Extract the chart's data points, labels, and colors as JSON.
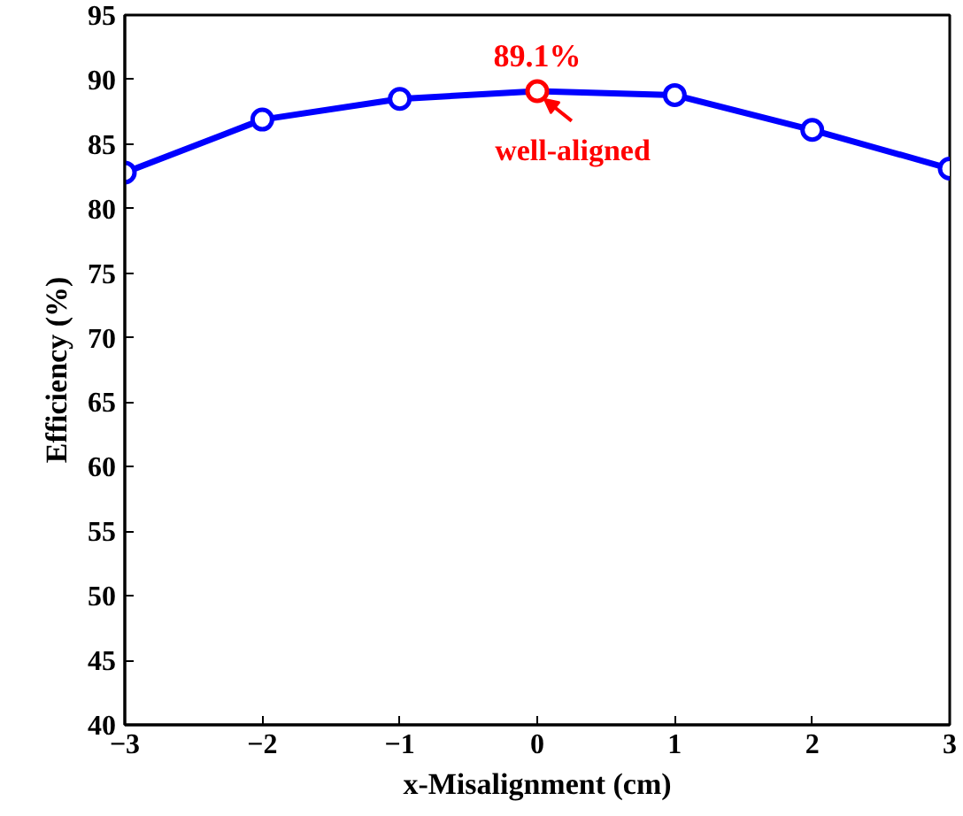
{
  "chart_data": {
    "type": "line",
    "xlabel": "x-Misalignment (cm)",
    "ylabel": "Efficiency (%)",
    "x": [
      -3,
      -2,
      -1,
      0,
      1,
      2,
      3
    ],
    "series": [
      {
        "color": "#0000ff",
        "colors": [
          "#0000ff",
          "#0000ff",
          "#0000ff",
          "#ff0000",
          "#0000ff",
          "#0000ff",
          "#0000ff"
        ],
        "values": [
          82.8,
          86.9,
          88.5,
          89.1,
          88.8,
          86.1,
          83.1
        ],
        "marker": "circle",
        "line_style": "solid"
      }
    ],
    "xlim": [
      -3,
      3
    ],
    "xticks": [
      -3,
      -2,
      -1,
      0,
      1,
      2,
      3
    ],
    "ylim": [
      40,
      95
    ],
    "yticks": [
      40,
      45,
      50,
      55,
      60,
      65,
      70,
      75,
      80,
      85,
      90,
      95
    ],
    "grid": false,
    "annotations": [
      {
        "text": "89.1%",
        "x": 0,
        "y": 89.1
      },
      {
        "text": "well-aligned",
        "x": 0,
        "y": 89.1
      }
    ]
  }
}
